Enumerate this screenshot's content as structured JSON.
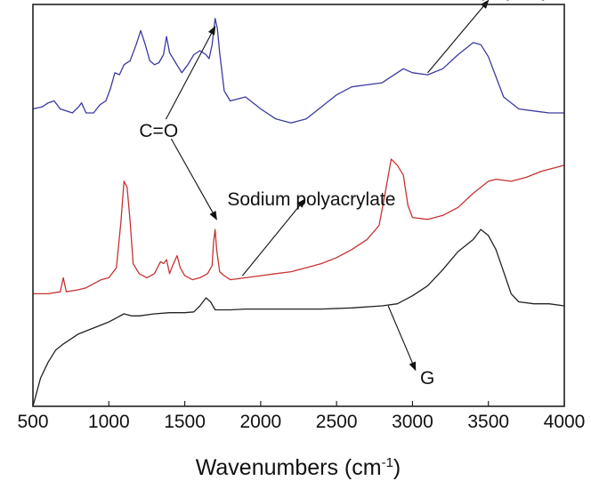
{
  "chart_data": {
    "type": "line",
    "xlabel": "Wavenumbers (cm",
    "xlabel_superscript": "-1",
    "xlabel_suffix": ")",
    "ylabel": "",
    "xlim": [
      500,
      4000
    ],
    "ylim": [
      0,
      10
    ],
    "xticks": [
      500,
      1000,
      1500,
      2000,
      2500,
      3000,
      3500,
      4000
    ],
    "yticks": [],
    "grid": false,
    "legend": "none",
    "series": [
      {
        "name": "Sodium polyacrylate-G",
        "color": "#3a3aa0",
        "points": [
          [
            500,
            7.4
          ],
          [
            560,
            7.45
          ],
          [
            600,
            7.55
          ],
          [
            640,
            7.6
          ],
          [
            680,
            7.4
          ],
          [
            720,
            7.35
          ],
          [
            760,
            7.3
          ],
          [
            800,
            7.45
          ],
          [
            820,
            7.55
          ],
          [
            850,
            7.3
          ],
          [
            900,
            7.3
          ],
          [
            940,
            7.5
          ],
          [
            980,
            7.6
          ],
          [
            1010,
            7.9
          ],
          [
            1040,
            8.3
          ],
          [
            1070,
            8.25
          ],
          [
            1100,
            8.5
          ],
          [
            1140,
            8.6
          ],
          [
            1180,
            9.0
          ],
          [
            1210,
            9.35
          ],
          [
            1240,
            9.0
          ],
          [
            1270,
            8.6
          ],
          [
            1300,
            8.5
          ],
          [
            1330,
            8.55
          ],
          [
            1360,
            8.75
          ],
          [
            1380,
            9.2
          ],
          [
            1400,
            8.8
          ],
          [
            1440,
            8.55
          ],
          [
            1480,
            8.3
          ],
          [
            1520,
            8.5
          ],
          [
            1560,
            8.75
          ],
          [
            1600,
            8.85
          ],
          [
            1640,
            8.75
          ],
          [
            1660,
            8.65
          ],
          [
            1680,
            9.0
          ],
          [
            1700,
            9.65
          ],
          [
            1715,
            9.4
          ],
          [
            1730,
            8.8
          ],
          [
            1760,
            7.85
          ],
          [
            1800,
            7.6
          ],
          [
            1850,
            7.65
          ],
          [
            1900,
            7.7
          ],
          [
            2000,
            7.4
          ],
          [
            2100,
            7.15
          ],
          [
            2200,
            7.05
          ],
          [
            2300,
            7.15
          ],
          [
            2400,
            7.45
          ],
          [
            2500,
            7.75
          ],
          [
            2600,
            7.95
          ],
          [
            2700,
            8.0
          ],
          [
            2800,
            8.05
          ],
          [
            2900,
            8.3
          ],
          [
            2940,
            8.4
          ],
          [
            3000,
            8.3
          ],
          [
            3100,
            8.25
          ],
          [
            3200,
            8.4
          ],
          [
            3300,
            8.75
          ],
          [
            3400,
            9.05
          ],
          [
            3450,
            9.0
          ],
          [
            3500,
            8.7
          ],
          [
            3600,
            7.7
          ],
          [
            3700,
            7.4
          ],
          [
            3800,
            7.35
          ],
          [
            3900,
            7.3
          ],
          [
            4000,
            7.3
          ]
        ]
      },
      {
        "name": "Sodium polyacrylate",
        "color": "#c83232",
        "points": [
          [
            500,
            2.8
          ],
          [
            600,
            2.8
          ],
          [
            680,
            2.85
          ],
          [
            700,
            3.2
          ],
          [
            720,
            2.85
          ],
          [
            800,
            2.9
          ],
          [
            850,
            2.95
          ],
          [
            900,
            3.05
          ],
          [
            950,
            3.15
          ],
          [
            1000,
            3.2
          ],
          [
            1050,
            3.45
          ],
          [
            1080,
            4.6
          ],
          [
            1100,
            5.6
          ],
          [
            1120,
            5.45
          ],
          [
            1140,
            4.6
          ],
          [
            1160,
            3.55
          ],
          [
            1200,
            3.3
          ],
          [
            1250,
            3.2
          ],
          [
            1300,
            3.3
          ],
          [
            1340,
            3.6
          ],
          [
            1360,
            3.55
          ],
          [
            1380,
            3.65
          ],
          [
            1400,
            3.3
          ],
          [
            1420,
            3.5
          ],
          [
            1450,
            3.75
          ],
          [
            1470,
            3.45
          ],
          [
            1500,
            3.25
          ],
          [
            1550,
            3.15
          ],
          [
            1600,
            3.2
          ],
          [
            1650,
            3.3
          ],
          [
            1680,
            3.5
          ],
          [
            1690,
            4.1
          ],
          [
            1700,
            4.4
          ],
          [
            1710,
            3.9
          ],
          [
            1730,
            3.35
          ],
          [
            1760,
            3.25
          ],
          [
            1800,
            3.15
          ],
          [
            1900,
            3.2
          ],
          [
            2000,
            3.25
          ],
          [
            2100,
            3.3
          ],
          [
            2200,
            3.35
          ],
          [
            2300,
            3.45
          ],
          [
            2400,
            3.55
          ],
          [
            2500,
            3.7
          ],
          [
            2600,
            3.9
          ],
          [
            2700,
            4.15
          ],
          [
            2780,
            4.5
          ],
          [
            2820,
            5.3
          ],
          [
            2860,
            6.15
          ],
          [
            2900,
            6.0
          ],
          [
            2940,
            5.75
          ],
          [
            2970,
            5.0
          ],
          [
            3000,
            4.7
          ],
          [
            3100,
            4.65
          ],
          [
            3200,
            4.75
          ],
          [
            3300,
            4.95
          ],
          [
            3400,
            5.3
          ],
          [
            3500,
            5.6
          ],
          [
            3550,
            5.65
          ],
          [
            3650,
            5.6
          ],
          [
            3750,
            5.7
          ],
          [
            3850,
            5.85
          ],
          [
            3950,
            5.95
          ],
          [
            4000,
            6.0
          ]
        ]
      },
      {
        "name": "G",
        "color": "#222222",
        "points": [
          [
            500,
            0.0
          ],
          [
            550,
            0.7
          ],
          [
            600,
            1.1
          ],
          [
            650,
            1.4
          ],
          [
            700,
            1.55
          ],
          [
            800,
            1.8
          ],
          [
            900,
            1.95
          ],
          [
            1000,
            2.1
          ],
          [
            1050,
            2.2
          ],
          [
            1100,
            2.3
          ],
          [
            1150,
            2.25
          ],
          [
            1200,
            2.25
          ],
          [
            1300,
            2.3
          ],
          [
            1400,
            2.33
          ],
          [
            1500,
            2.33
          ],
          [
            1560,
            2.35
          ],
          [
            1600,
            2.5
          ],
          [
            1640,
            2.7
          ],
          [
            1670,
            2.6
          ],
          [
            1700,
            2.4
          ],
          [
            1800,
            2.4
          ],
          [
            1900,
            2.42
          ],
          [
            2000,
            2.42
          ],
          [
            2200,
            2.42
          ],
          [
            2400,
            2.42
          ],
          [
            2600,
            2.45
          ],
          [
            2800,
            2.5
          ],
          [
            2900,
            2.55
          ],
          [
            3000,
            2.75
          ],
          [
            3100,
            3.0
          ],
          [
            3200,
            3.4
          ],
          [
            3300,
            3.85
          ],
          [
            3400,
            4.15
          ],
          [
            3450,
            4.4
          ],
          [
            3500,
            4.25
          ],
          [
            3550,
            3.9
          ],
          [
            3600,
            3.35
          ],
          [
            3650,
            2.8
          ],
          [
            3700,
            2.6
          ],
          [
            3800,
            2.55
          ],
          [
            3900,
            2.55
          ],
          [
            4000,
            2.5
          ]
        ]
      }
    ],
    "annotations": [
      {
        "text": "Sodium polyacrylate-G",
        "x": 3000,
        "y": 10.2,
        "arrow_from": [
          3100,
          8.3
        ],
        "arrow_to": [
          3500,
          10.1
        ]
      },
      {
        "text": "Sodium polyacrylate",
        "x": 1780,
        "y": 5.0,
        "arrow_from": [
          1880,
          3.25
        ],
        "arrow_to": [
          2290,
          5.15
        ]
      },
      {
        "text": "C=O",
        "x": 1200,
        "y": 6.7,
        "arrows_to": [
          [
            1700,
            9.45
          ],
          [
            1710,
            4.65
          ]
        ]
      },
      {
        "text": "G",
        "x": 3050,
        "y": 0.55,
        "arrow_from": [
          2840,
          2.5
        ],
        "arrow_to": [
          3020,
          0.9
        ]
      }
    ]
  }
}
